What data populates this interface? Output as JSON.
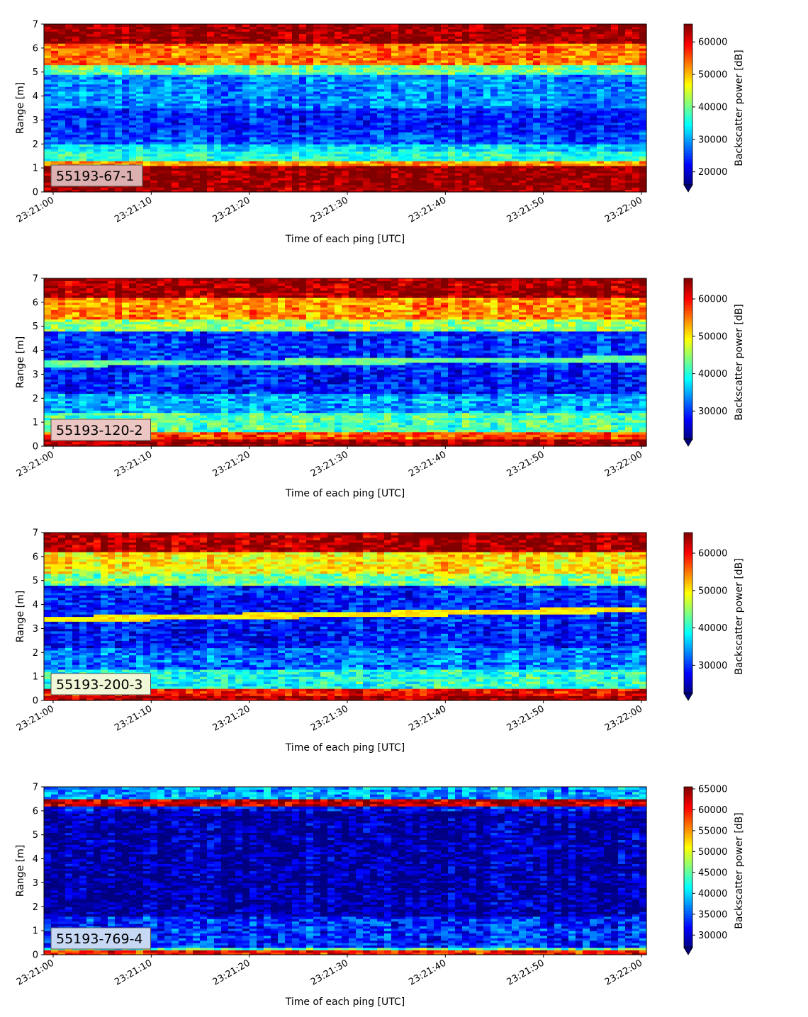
{
  "chart_data": [
    {
      "type": "heatmap",
      "label": "55193-67-1",
      "xlabel": "Time of each ping [UTC]",
      "ylabel": "Range [m]",
      "ylim": [
        0,
        7
      ],
      "yticks": [
        "0",
        "1",
        "2",
        "3",
        "4",
        "5",
        "6",
        "7"
      ],
      "xlim": [
        "23:21:00",
        "23:22:00"
      ],
      "xticks": [
        "23:21:00",
        "23:21:10",
        "23:21:20",
        "23:21:30",
        "23:21:40",
        "23:21:50",
        "23:22:00"
      ],
      "colorbar": {
        "label": "Backscatter power [dB]",
        "min": 16000,
        "max": 65500,
        "ticks": [
          "20000",
          "30000",
          "40000",
          "50000",
          "60000"
        ],
        "extend": "min"
      },
      "layers": [
        {
          "from": 0.0,
          "to": 0.25,
          "value": 64000
        },
        {
          "from": 0.25,
          "to": 1.15,
          "value": 65000
        },
        {
          "from": 1.15,
          "to": 1.35,
          "value": 52000
        },
        {
          "from": 1.35,
          "to": 1.7,
          "value": 37000
        },
        {
          "from": 1.7,
          "to": 2.0,
          "value": 33000
        },
        {
          "from": 2.0,
          "to": 2.5,
          "value": 26000
        },
        {
          "from": 2.5,
          "to": 3.5,
          "value": 24000
        },
        {
          "from": 3.5,
          "to": 4.9,
          "value": 29000
        },
        {
          "from": 4.9,
          "to": 5.3,
          "value": 40000
        },
        {
          "from": 5.3,
          "to": 6.2,
          "value": 54000
        },
        {
          "from": 6.2,
          "to": 7.0,
          "value": 64500
        }
      ]
    },
    {
      "type": "heatmap",
      "label": "55193-120-2",
      "xlabel": "Time of each ping [UTC]",
      "ylabel": "Range [m]",
      "ylim": [
        0,
        7
      ],
      "yticks": [
        "0",
        "1",
        "2",
        "3",
        "4",
        "5",
        "6",
        "7"
      ],
      "xlim": [
        "23:21:00",
        "23:22:00"
      ],
      "xticks": [
        "23:21:00",
        "23:21:10",
        "23:21:20",
        "23:21:30",
        "23:21:40",
        "23:21:50",
        "23:22:00"
      ],
      "colorbar": {
        "label": "Backscatter power [dB]",
        "min": 22500,
        "max": 65500,
        "ticks": [
          "30000",
          "40000",
          "50000",
          "60000"
        ],
        "extend": "min"
      },
      "layers": [
        {
          "from": 0.0,
          "to": 0.35,
          "value": 64000
        },
        {
          "from": 0.35,
          "to": 0.6,
          "value": 57000
        },
        {
          "from": 0.6,
          "to": 1.4,
          "value": 42000
        },
        {
          "from": 1.4,
          "to": 2.2,
          "value": 35000
        },
        {
          "from": 2.2,
          "to": 3.2,
          "value": 29000
        },
        {
          "from": 3.2,
          "to": 4.8,
          "value": 30000
        },
        {
          "from": 4.8,
          "to": 5.3,
          "value": 45000
        },
        {
          "from": 5.3,
          "to": 6.2,
          "value": 54000
        },
        {
          "from": 6.2,
          "to": 7.0,
          "value": 64000
        }
      ],
      "trace": {
        "start": 3.45,
        "end": 3.65,
        "value": 43000
      }
    },
    {
      "type": "heatmap",
      "label": "55193-200-3",
      "xlabel": "Time of each ping [UTC]",
      "ylabel": "Range [m]",
      "ylim": [
        0,
        7
      ],
      "yticks": [
        "0",
        "1",
        "2",
        "3",
        "4",
        "5",
        "6",
        "7"
      ],
      "xlim": [
        "23:21:00",
        "23:22:00"
      ],
      "xticks": [
        "23:21:00",
        "23:21:10",
        "23:21:20",
        "23:21:30",
        "23:21:40",
        "23:21:50",
        "23:22:00"
      ],
      "colorbar": {
        "label": "Backscatter power [dB]",
        "min": 22500,
        "max": 65500,
        "ticks": [
          "30000",
          "40000",
          "50000",
          "60000"
        ],
        "extend": "min"
      },
      "layers": [
        {
          "from": 0.0,
          "to": 0.25,
          "value": 64000
        },
        {
          "from": 0.25,
          "to": 0.5,
          "value": 60000
        },
        {
          "from": 0.5,
          "to": 1.3,
          "value": 40000
        },
        {
          "from": 1.3,
          "to": 2.2,
          "value": 33000
        },
        {
          "from": 2.2,
          "to": 3.2,
          "value": 29000
        },
        {
          "from": 3.2,
          "to": 4.8,
          "value": 29500
        },
        {
          "from": 4.8,
          "to": 5.3,
          "value": 44000
        },
        {
          "from": 5.3,
          "to": 6.2,
          "value": 50000
        },
        {
          "from": 6.2,
          "to": 7.0,
          "value": 64000
        }
      ],
      "trace": {
        "start": 3.4,
        "end": 3.8,
        "value": 50000
      }
    },
    {
      "type": "heatmap",
      "label": "55193-769-4",
      "xlabel": "Time of each ping [UTC]",
      "ylabel": "Range [m]",
      "ylim": [
        0,
        7
      ],
      "yticks": [
        "0",
        "1",
        "2",
        "3",
        "4",
        "5",
        "6",
        "7"
      ],
      "xlim": [
        "23:21:00",
        "23:22:00"
      ],
      "xticks": [
        "23:21:00",
        "23:21:10",
        "23:21:20",
        "23:21:30",
        "23:21:40",
        "23:21:50",
        "23:22:00"
      ],
      "colorbar": {
        "label": "Backscatter power [dB]",
        "min": 27000,
        "max": 65500,
        "ticks": [
          "30000",
          "35000",
          "40000",
          "45000",
          "50000",
          "55000",
          "60000",
          "65000"
        ],
        "extend": "min"
      },
      "layers": [
        {
          "from": 0.0,
          "to": 0.2,
          "value": 60000
        },
        {
          "from": 0.2,
          "to": 0.35,
          "value": 45000
        },
        {
          "from": 0.35,
          "to": 1.6,
          "value": 33500
        },
        {
          "from": 1.6,
          "to": 6.0,
          "value": 28500
        },
        {
          "from": 6.0,
          "to": 6.2,
          "value": 32000
        },
        {
          "from": 6.2,
          "to": 6.45,
          "value": 63000
        },
        {
          "from": 6.45,
          "to": 7.0,
          "value": 38000
        }
      ]
    }
  ],
  "colormap": "jet"
}
